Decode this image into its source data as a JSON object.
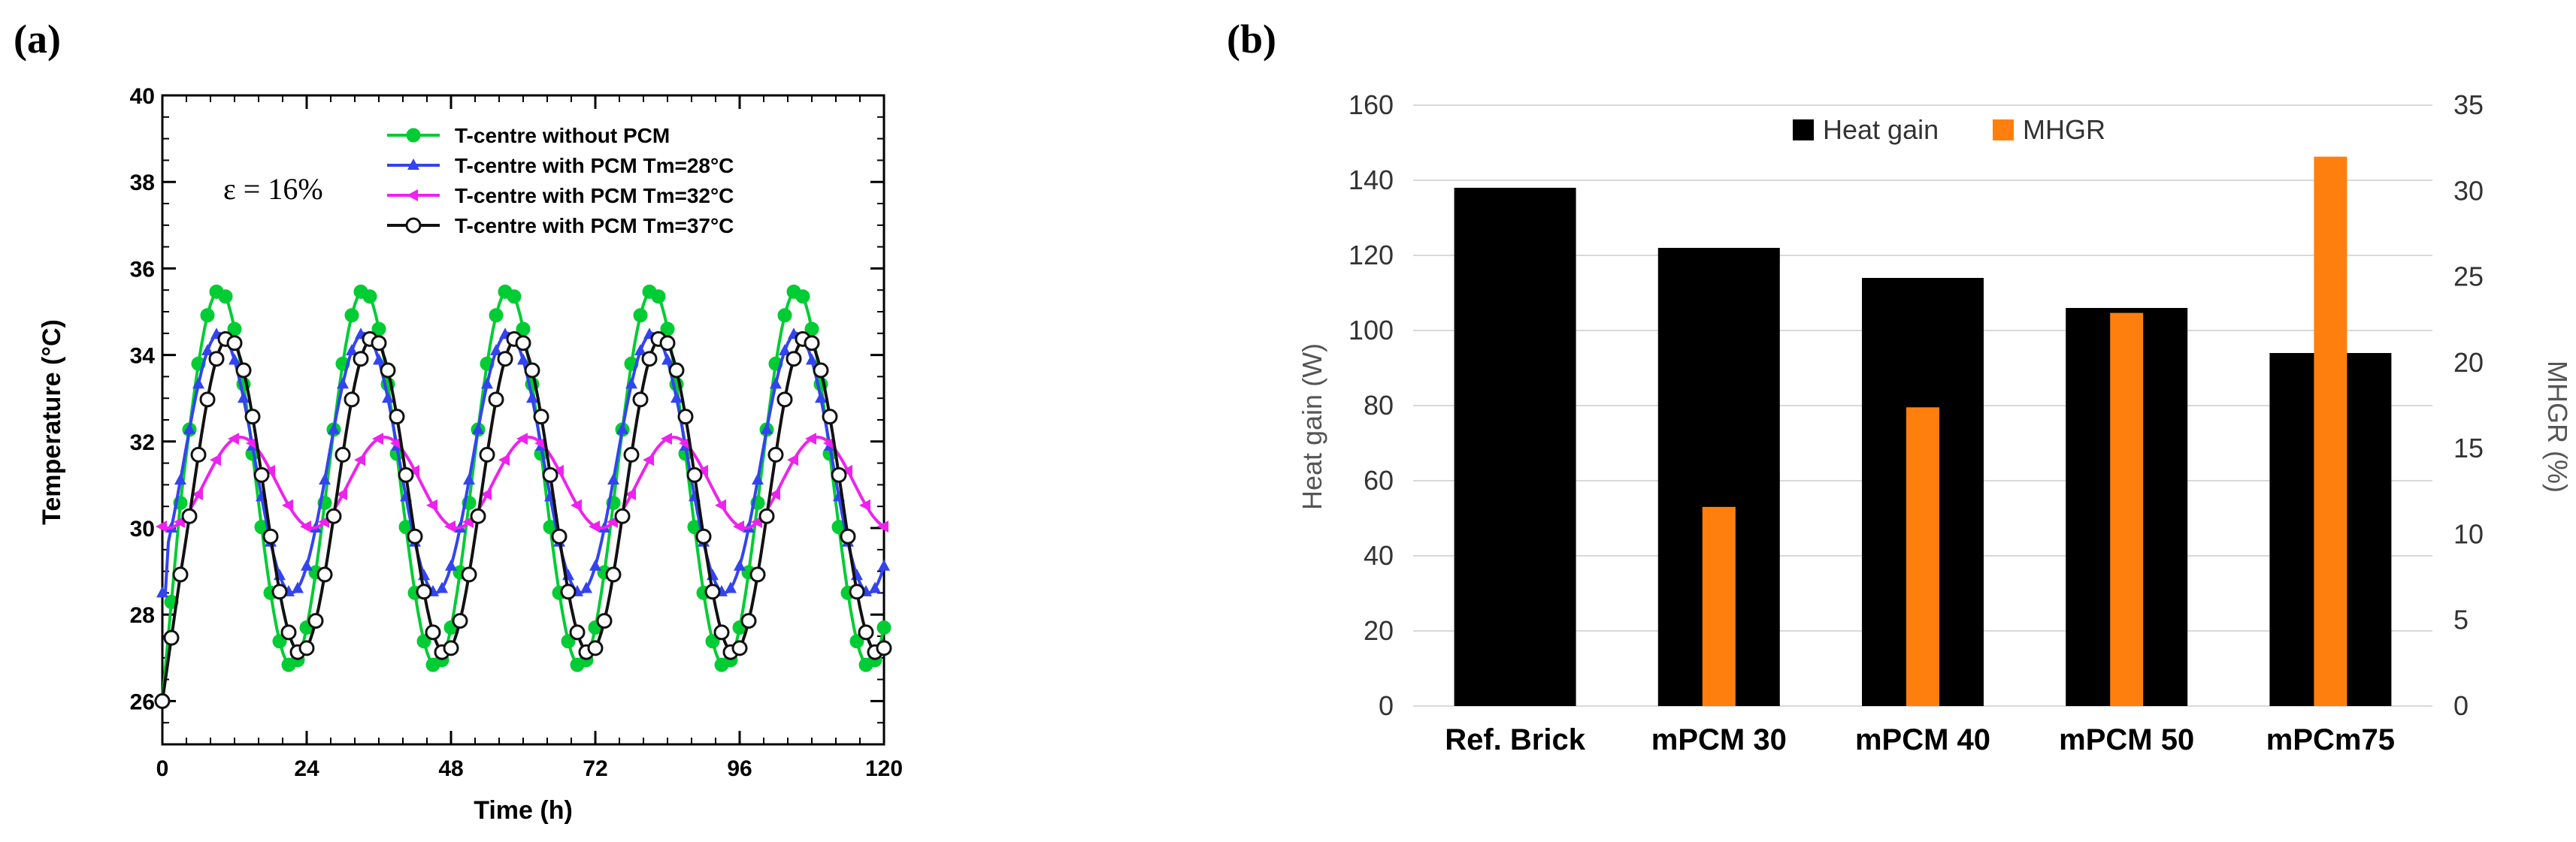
{
  "chart_data": [
    {
      "panel_label": "(a)",
      "type": "line",
      "xlabel": "Time (h)",
      "ylabel": "Temperature (°C)",
      "annotation": "ε = 16%",
      "xlim": [
        0,
        120
      ],
      "ylim": [
        25,
        40
      ],
      "xticks": [
        0,
        24,
        48,
        72,
        96,
        120
      ],
      "yticks": [
        26,
        28,
        30,
        32,
        34,
        36,
        38,
        40
      ],
      "grid": false,
      "legend_position": "top-right",
      "series": [
        {
          "name": "T-centre without PCM",
          "color": "#00cc33",
          "marker": "circle-filled",
          "period": 24,
          "phase": 9.5,
          "min": 26.8,
          "max": 35.5
        },
        {
          "name": "T-centre with PCM Tm=28°C",
          "color": "#3344ee",
          "marker": "triangle-up",
          "period": 24,
          "phase": 9.5,
          "min": 28.5,
          "max": 34.5
        },
        {
          "name": "T-centre with PCM Tm=32°C",
          "color": "#ee22ee",
          "marker": "triangle-left",
          "period": 24,
          "phase": 13,
          "min": 30.0,
          "max": 32.1
        },
        {
          "name": "T-centre with PCM Tm=37°C",
          "color": "#111111",
          "marker": "circle-open",
          "period": 24,
          "phase": 11,
          "min": 27.1,
          "max": 34.4
        }
      ]
    },
    {
      "panel_label": "(b)",
      "type": "bar",
      "categories": [
        "Ref. Brick",
        "mPCM 30",
        "mPCM 40",
        "mPCM 50",
        "mPCm75"
      ],
      "ylabel": "Heat gain (W)",
      "y2label": "MHGR (%)",
      "ylim": [
        0,
        160
      ],
      "y2lim": [
        0,
        35
      ],
      "yticks": [
        0,
        20,
        40,
        60,
        80,
        100,
        120,
        140,
        160
      ],
      "y2ticks": [
        0,
        5,
        10,
        15,
        20,
        25,
        30,
        35
      ],
      "grid": true,
      "legend_position": "top-center",
      "series": [
        {
          "name": "Heat gain",
          "axis": "left",
          "color": "#000000",
          "values": [
            138,
            122,
            114,
            106,
            94
          ]
        },
        {
          "name": "MHGR",
          "axis": "right",
          "color": "#ff7f0e",
          "values": [
            0,
            11.6,
            17.4,
            22.9,
            32
          ]
        }
      ]
    }
  ]
}
